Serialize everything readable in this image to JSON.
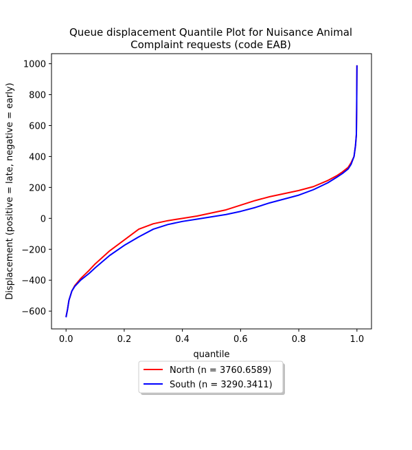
{
  "chart_data": {
    "type": "line",
    "title_lines": [
      "Queue displacement Quantile Plot for Nuisance Animal",
      "Complaint  requests (code EAB)"
    ],
    "xlabel": "quantile",
    "ylabel": "Displacement (positive = late, negative = early)",
    "xlim": [
      -0.05,
      1.05
    ],
    "ylim": [
      -715,
      1065
    ],
    "xticks": [
      0.0,
      0.2,
      0.4,
      0.6,
      0.8,
      1.0
    ],
    "xtick_labels": [
      "0.0",
      "0.2",
      "0.4",
      "0.6",
      "0.8",
      "1.0"
    ],
    "yticks": [
      -600,
      -400,
      -200,
      0,
      200,
      400,
      600,
      800,
      1000
    ],
    "ytick_labels": [
      "−600",
      "−400",
      "−200",
      "0",
      "200",
      "400",
      "600",
      "800",
      "1000"
    ],
    "grid": false,
    "legend_position": "below plot, centered",
    "series": [
      {
        "name": "North (n = 3760.6589)",
        "color": "#ff0000",
        "x": [
          0.0,
          0.005,
          0.01,
          0.02,
          0.03,
          0.05,
          0.08,
          0.1,
          0.15,
          0.2,
          0.25,
          0.3,
          0.35,
          0.4,
          0.45,
          0.5,
          0.55,
          0.6,
          0.65,
          0.7,
          0.75,
          0.8,
          0.85,
          0.9,
          0.93,
          0.95,
          0.97,
          0.98,
          0.99,
          0.995,
          0.998,
          0.999,
          1.0
        ],
        "y": [
          -635,
          -590,
          -530,
          -470,
          -435,
          -390,
          -335,
          -295,
          -210,
          -140,
          -70,
          -35,
          -15,
          0,
          15,
          35,
          55,
          85,
          115,
          140,
          160,
          180,
          205,
          245,
          275,
          300,
          330,
          360,
          400,
          470,
          540,
          700,
          990
        ]
      },
      {
        "name": "South (n = 3290.3411)",
        "color": "#0000ff",
        "x": [
          0.0,
          0.005,
          0.01,
          0.02,
          0.03,
          0.05,
          0.08,
          0.1,
          0.15,
          0.2,
          0.25,
          0.3,
          0.35,
          0.4,
          0.45,
          0.5,
          0.55,
          0.6,
          0.65,
          0.7,
          0.75,
          0.8,
          0.85,
          0.9,
          0.93,
          0.95,
          0.97,
          0.98,
          0.99,
          0.995,
          0.998,
          0.999,
          1.0
        ],
        "y": [
          -640,
          -590,
          -530,
          -470,
          -440,
          -400,
          -355,
          -320,
          -240,
          -175,
          -120,
          -70,
          -40,
          -20,
          -5,
          10,
          25,
          45,
          70,
          100,
          125,
          150,
          185,
          230,
          265,
          290,
          320,
          350,
          400,
          470,
          540,
          700,
          990
        ]
      }
    ]
  }
}
